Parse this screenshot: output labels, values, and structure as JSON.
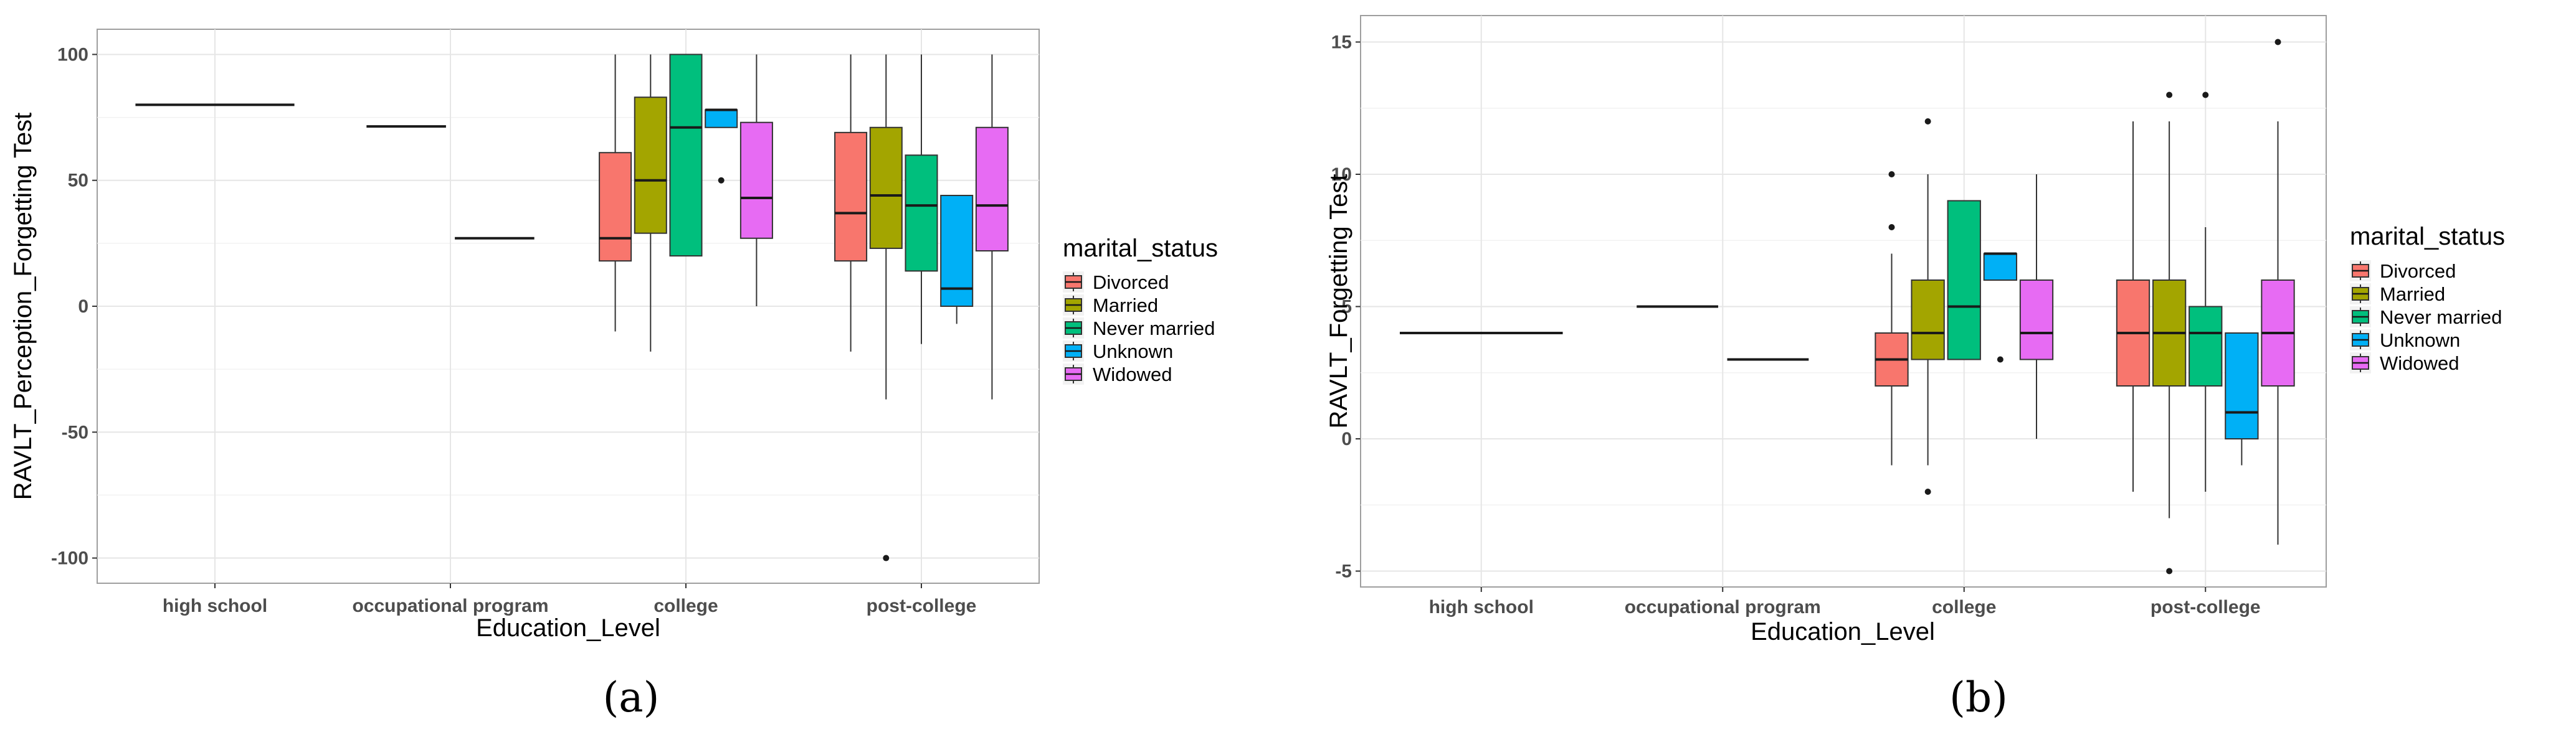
{
  "chart_data": [
    {
      "type": "box",
      "panel_label": "(a)",
      "xlabel": "Education_Level",
      "ylabel": "RAVLT_Perception_Forgetting Test",
      "ylim": [
        -110,
        110
      ],
      "yticks": [
        -100,
        -50,
        0,
        50,
        100
      ],
      "categories": [
        "high school",
        "occupational program",
        "college",
        "post-college"
      ],
      "legend": {
        "title": "marital_status",
        "entries": [
          {
            "name": "Divorced",
            "color": "#F8766D"
          },
          {
            "name": "Married",
            "color": "#A3A500"
          },
          {
            "name": "Never married",
            "color": "#00BF7D"
          },
          {
            "name": "Unknown",
            "color": "#00B0F6"
          },
          {
            "name": "Widowed",
            "color": "#E76BF3"
          }
        ]
      },
      "boxes": [
        {
          "category": "high school",
          "group": "Divorced",
          "slot": 0,
          "slots": 1,
          "q1": 80,
          "median": 80,
          "q3": 80,
          "whisker_low": 80,
          "whisker_high": 80,
          "outliers": []
        },
        {
          "category": "occupational program",
          "group": "Divorced",
          "slot": 0,
          "slots": 2,
          "q1": 71.4,
          "median": 71.4,
          "q3": 71.4,
          "whisker_low": 71.4,
          "whisker_high": 71.4,
          "outliers": []
        },
        {
          "category": "occupational program",
          "group": "Married",
          "slot": 1,
          "slots": 2,
          "q1": 27,
          "median": 27,
          "q3": 27,
          "whisker_low": 27,
          "whisker_high": 27,
          "outliers": []
        },
        {
          "category": "college",
          "group": "Divorced",
          "slot": 0,
          "slots": 5,
          "q1": 18,
          "median": 27,
          "q3": 61,
          "whisker_low": -10,
          "whisker_high": 100,
          "outliers": []
        },
        {
          "category": "college",
          "group": "Married",
          "slot": 1,
          "slots": 5,
          "q1": 29,
          "median": 50,
          "q3": 83,
          "whisker_low": -18,
          "whisker_high": 100,
          "outliers": []
        },
        {
          "category": "college",
          "group": "Never married",
          "slot": 2,
          "slots": 5,
          "q1": 20,
          "median": 71,
          "q3": 100,
          "whisker_low": 20,
          "whisker_high": 100,
          "outliers": []
        },
        {
          "category": "college",
          "group": "Unknown",
          "slot": 3,
          "slots": 5,
          "q1": 71,
          "median": 78,
          "q3": 78,
          "whisker_low": 71,
          "whisker_high": 78,
          "outliers": [
            50
          ]
        },
        {
          "category": "college",
          "group": "Widowed",
          "slot": 4,
          "slots": 5,
          "q1": 27,
          "median": 43,
          "q3": 73,
          "whisker_low": 0,
          "whisker_high": 100,
          "outliers": []
        },
        {
          "category": "post-college",
          "group": "Divorced",
          "slot": 0,
          "slots": 5,
          "q1": 18,
          "median": 37,
          "q3": 69,
          "whisker_low": -18,
          "whisker_high": 100,
          "outliers": []
        },
        {
          "category": "post-college",
          "group": "Married",
          "slot": 1,
          "slots": 5,
          "q1": 23,
          "median": 44,
          "q3": 71,
          "whisker_low": -37,
          "whisker_high": 100,
          "outliers": [
            -100
          ]
        },
        {
          "category": "post-college",
          "group": "Never married",
          "slot": 2,
          "slots": 5,
          "q1": 14,
          "median": 40,
          "q3": 60,
          "whisker_low": -15,
          "whisker_high": 100,
          "outliers": []
        },
        {
          "category": "post-college",
          "group": "Unknown",
          "slot": 3,
          "slots": 5,
          "q1": 0,
          "median": 7,
          "q3": 44,
          "whisker_low": -7,
          "whisker_high": 44,
          "outliers": []
        },
        {
          "category": "post-college",
          "group": "Widowed",
          "slot": 4,
          "slots": 5,
          "q1": 22,
          "median": 40,
          "q3": 71,
          "whisker_low": -37,
          "whisker_high": 100,
          "outliers": []
        }
      ]
    },
    {
      "type": "box",
      "panel_label": "(b)",
      "xlabel": "Education_Level",
      "ylabel": "RAVLT_Forgetting Test",
      "ylim": [
        -5.6,
        16.0
      ],
      "yticks": [
        -5,
        0,
        5,
        10,
        15
      ],
      "categories": [
        "high school",
        "occupational program",
        "college",
        "post-college"
      ],
      "legend": {
        "title": "marital_status",
        "entries": [
          {
            "name": "Divorced",
            "color": "#F8766D"
          },
          {
            "name": "Married",
            "color": "#A3A500"
          },
          {
            "name": "Never married",
            "color": "#00BF7D"
          },
          {
            "name": "Unknown",
            "color": "#00B0F6"
          },
          {
            "name": "Widowed",
            "color": "#E76BF3"
          }
        ]
      },
      "boxes": [
        {
          "category": "high school",
          "group": "Divorced",
          "slot": 0,
          "slots": 1,
          "q1": 4,
          "median": 4,
          "q3": 4,
          "whisker_low": 4,
          "whisker_high": 4,
          "outliers": []
        },
        {
          "category": "occupational program",
          "group": "Divorced",
          "slot": 0,
          "slots": 2,
          "q1": 5,
          "median": 5,
          "q3": 5,
          "whisker_low": 5,
          "whisker_high": 5,
          "outliers": []
        },
        {
          "category": "occupational program",
          "group": "Married",
          "slot": 1,
          "slots": 2,
          "q1": 3,
          "median": 3,
          "q3": 3,
          "whisker_low": 3,
          "whisker_high": 3,
          "outliers": []
        },
        {
          "category": "college",
          "group": "Divorced",
          "slot": 0,
          "slots": 5,
          "q1": 2,
          "median": 3,
          "q3": 4,
          "whisker_low": -1,
          "whisker_high": 7,
          "outliers": [
            8,
            10
          ]
        },
        {
          "category": "college",
          "group": "Married",
          "slot": 1,
          "slots": 5,
          "q1": 3,
          "median": 4,
          "q3": 6,
          "whisker_low": -1,
          "whisker_high": 10,
          "outliers": [
            12,
            -2
          ]
        },
        {
          "category": "college",
          "group": "Never married",
          "slot": 2,
          "slots": 5,
          "q1": 3,
          "median": 5,
          "q3": 9,
          "whisker_low": 3,
          "whisker_high": 9,
          "outliers": []
        },
        {
          "category": "college",
          "group": "Unknown",
          "slot": 3,
          "slots": 5,
          "q1": 6,
          "median": 7,
          "q3": 7,
          "whisker_low": 6,
          "whisker_high": 7,
          "outliers": [
            3
          ]
        },
        {
          "category": "college",
          "group": "Widowed",
          "slot": 4,
          "slots": 5,
          "q1": 3,
          "median": 4,
          "q3": 6,
          "whisker_low": 0,
          "whisker_high": 10,
          "outliers": []
        },
        {
          "category": "post-college",
          "group": "Divorced",
          "slot": 0,
          "slots": 5,
          "q1": 2,
          "median": 4,
          "q3": 6,
          "whisker_low": -2,
          "whisker_high": 12,
          "outliers": []
        },
        {
          "category": "post-college",
          "group": "Married",
          "slot": 1,
          "slots": 5,
          "q1": 2,
          "median": 4,
          "q3": 6,
          "whisker_low": -3,
          "whisker_high": 12,
          "outliers": [
            13,
            -5
          ]
        },
        {
          "category": "post-college",
          "group": "Never married",
          "slot": 2,
          "slots": 5,
          "q1": 2,
          "median": 4,
          "q3": 5,
          "whisker_low": -2,
          "whisker_high": 8,
          "outliers": [
            13
          ]
        },
        {
          "category": "post-college",
          "group": "Unknown",
          "slot": 3,
          "slots": 5,
          "q1": 0,
          "median": 1,
          "q3": 4,
          "whisker_low": -1,
          "whisker_high": 4,
          "outliers": []
        },
        {
          "category": "post-college",
          "group": "Widowed",
          "slot": 4,
          "slots": 5,
          "q1": 2,
          "median": 4,
          "q3": 6,
          "whisker_low": -4,
          "whisker_high": 12,
          "outliers": [
            15
          ]
        }
      ]
    }
  ]
}
